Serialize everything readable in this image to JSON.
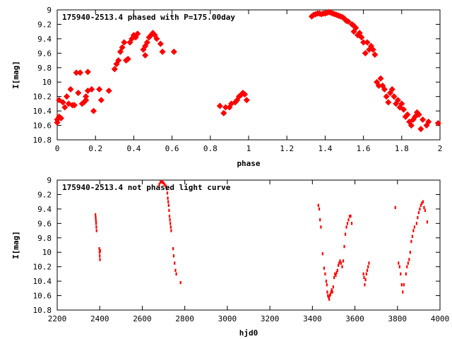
{
  "chart_data": [
    {
      "type": "scatter",
      "title": "175940-2513.4 phased with P=175.00day",
      "xlabel": "phase",
      "ylabel": "I[mag]",
      "xlim": [
        0,
        2
      ],
      "ylim": [
        9,
        10.8
      ],
      "y_inverted": true,
      "grid": false,
      "legend": "none",
      "marker_color": "#ff0000",
      "xticks": [
        "0",
        "0.2",
        "0.4",
        "0.6",
        "0.8",
        "1",
        "1.2",
        "1.4",
        "1.6",
        "1.8",
        "2"
      ],
      "xtick_values": [
        0,
        0.2,
        0.4,
        0.6,
        0.8,
        1.0,
        1.2,
        1.4,
        1.6,
        1.8,
        2.0
      ],
      "yticks": [
        "9",
        "9.2",
        "9.4",
        "9.6",
        "9.8",
        "10",
        "10.2",
        "10.4",
        "10.6",
        "10.8"
      ],
      "ytick_values": [
        9,
        9.2,
        9.4,
        9.6,
        9.8,
        10,
        10.2,
        10.4,
        10.6,
        10.8
      ],
      "points": [
        [
          0.0,
          10.52
        ],
        [
          0.0,
          10.56
        ],
        [
          0.01,
          10.48
        ],
        [
          0.01,
          10.25
        ],
        [
          0.02,
          10.5
        ],
        [
          0.03,
          10.28
        ],
        [
          0.04,
          10.35
        ],
        [
          0.05,
          10.2
        ],
        [
          0.06,
          10.3
        ],
        [
          0.07,
          10.1
        ],
        [
          0.08,
          10.32
        ],
        [
          0.09,
          10.32
        ],
        [
          0.1,
          9.87
        ],
        [
          0.11,
          10.15
        ],
        [
          0.12,
          9.87
        ],
        [
          0.13,
          10.3
        ],
        [
          0.14,
          10.28
        ],
        [
          0.15,
          10.25
        ],
        [
          0.15,
          10.2
        ],
        [
          0.16,
          10.12
        ],
        [
          0.16,
          9.86
        ],
        [
          0.18,
          10.1
        ],
        [
          0.19,
          10.4
        ],
        [
          0.22,
          10.1
        ],
        [
          0.23,
          10.25
        ],
        [
          0.27,
          10.12
        ],
        [
          0.3,
          9.82
        ],
        [
          0.31,
          9.75
        ],
        [
          0.32,
          9.7
        ],
        [
          0.33,
          9.58
        ],
        [
          0.34,
          9.52
        ],
        [
          0.35,
          9.45
        ],
        [
          0.36,
          9.7
        ],
        [
          0.37,
          9.68
        ],
        [
          0.38,
          9.45
        ],
        [
          0.39,
          9.4
        ],
        [
          0.4,
          9.35
        ],
        [
          0.41,
          9.38
        ],
        [
          0.42,
          9.33
        ],
        [
          0.45,
          9.55
        ],
        [
          0.46,
          9.5
        ],
        [
          0.46,
          9.63
        ],
        [
          0.47,
          9.45
        ],
        [
          0.48,
          9.38
        ],
        [
          0.49,
          9.35
        ],
        [
          0.5,
          9.32
        ],
        [
          0.51,
          9.35
        ],
        [
          0.52,
          9.4
        ],
        [
          0.54,
          9.47
        ],
        [
          0.55,
          9.58
        ],
        [
          0.61,
          9.58
        ],
        [
          0.85,
          10.33
        ],
        [
          0.87,
          10.43
        ],
        [
          0.88,
          10.35
        ],
        [
          0.9,
          10.35
        ],
        [
          0.91,
          10.3
        ],
        [
          0.93,
          10.28
        ],
        [
          0.94,
          10.25
        ],
        [
          0.95,
          10.2
        ],
        [
          0.96,
          10.18
        ],
        [
          0.97,
          10.15
        ],
        [
          0.98,
          10.17
        ],
        [
          0.99,
          10.25
        ],
        [
          1.33,
          9.09
        ],
        [
          1.34,
          9.07
        ],
        [
          1.35,
          9.06
        ],
        [
          1.36,
          9.05
        ],
        [
          1.37,
          9.05
        ],
        [
          1.38,
          9.06
        ],
        [
          1.39,
          9.05
        ],
        [
          1.4,
          9.05
        ],
        [
          1.41,
          9.04
        ],
        [
          1.42,
          9.03
        ],
        [
          1.43,
          9.04
        ],
        [
          1.44,
          9.05
        ],
        [
          1.45,
          9.06
        ],
        [
          1.46,
          9.07
        ],
        [
          1.47,
          9.08
        ],
        [
          1.48,
          9.09
        ],
        [
          1.49,
          9.1
        ],
        [
          1.5,
          9.12
        ],
        [
          1.51,
          9.15
        ],
        [
          1.52,
          9.16
        ],
        [
          1.54,
          9.2
        ],
        [
          1.55,
          9.22
        ],
        [
          1.55,
          9.3
        ],
        [
          1.56,
          9.25
        ],
        [
          1.57,
          9.35
        ],
        [
          1.58,
          9.32
        ],
        [
          1.59,
          9.38
        ],
        [
          1.6,
          9.45
        ],
        [
          1.61,
          9.6
        ],
        [
          1.62,
          9.45
        ],
        [
          1.63,
          9.55
        ],
        [
          1.64,
          9.5
        ],
        [
          1.65,
          9.55
        ],
        [
          1.66,
          9.62
        ],
        [
          1.67,
          10.0
        ],
        [
          1.68,
          10.05
        ],
        [
          1.69,
          9.95
        ],
        [
          1.7,
          10.05
        ],
        [
          1.71,
          10.1
        ],
        [
          1.72,
          10.2
        ],
        [
          1.73,
          10.28
        ],
        [
          1.74,
          10.15
        ],
        [
          1.75,
          10.1
        ],
        [
          1.76,
          10.2
        ],
        [
          1.77,
          10.3
        ],
        [
          1.78,
          10.25
        ],
        [
          1.79,
          10.35
        ],
        [
          1.8,
          10.3
        ],
        [
          1.81,
          10.38
        ],
        [
          1.82,
          10.48
        ],
        [
          1.83,
          10.45
        ],
        [
          1.84,
          10.55
        ],
        [
          1.85,
          10.6
        ],
        [
          1.86,
          10.52
        ],
        [
          1.87,
          10.48
        ],
        [
          1.88,
          10.42
        ],
        [
          1.89,
          10.45
        ],
        [
          1.9,
          10.65
        ],
        [
          1.91,
          10.52
        ],
        [
          1.93,
          10.6
        ],
        [
          1.94,
          10.55
        ],
        [
          1.99,
          10.57
        ]
      ]
    },
    {
      "type": "scatter",
      "title": "175940-2513.4 not phased light curve",
      "xlabel": "hjd0",
      "ylabel": "I[mag]",
      "xlim": [
        2200,
        4000
      ],
      "ylim": [
        9,
        10.8
      ],
      "y_inverted": true,
      "grid": false,
      "legend": "none",
      "marker_color": "#ff0000",
      "xticks": [
        "2200",
        "2400",
        "2600",
        "2800",
        "3000",
        "3200",
        "3400",
        "3600",
        "3800",
        "4000"
      ],
      "xtick_values": [
        2200,
        2400,
        2600,
        2800,
        3000,
        3200,
        3400,
        3600,
        3800,
        4000
      ],
      "yticks": [
        "9",
        "9.2",
        "9.4",
        "9.6",
        "9.8",
        "10",
        "10.2",
        "10.4",
        "10.6",
        "10.8"
      ],
      "ytick_values": [
        9,
        9.2,
        9.4,
        9.6,
        9.8,
        10,
        10.2,
        10.4,
        10.6,
        10.8
      ],
      "points": [
        [
          2380,
          9.48
        ],
        [
          2381,
          9.52
        ],
        [
          2382,
          9.56
        ],
        [
          2383,
          9.6
        ],
        [
          2384,
          9.65
        ],
        [
          2385,
          9.7
        ],
        [
          2398,
          9.95
        ],
        [
          2399,
          10.0
        ],
        [
          2400,
          10.05
        ],
        [
          2401,
          10.1
        ],
        [
          2402,
          9.98
        ],
        [
          2680,
          9.06
        ],
        [
          2685,
          9.03
        ],
        [
          2690,
          9.02
        ],
        [
          2695,
          9.03
        ],
        [
          2700,
          9.04
        ],
        [
          2705,
          9.06
        ],
        [
          2710,
          9.08
        ],
        [
          2715,
          9.12
        ],
        [
          2718,
          9.18
        ],
        [
          2720,
          9.25
        ],
        [
          2722,
          9.3
        ],
        [
          2724,
          9.35
        ],
        [
          2726,
          9.42
        ],
        [
          2728,
          9.5
        ],
        [
          2730,
          9.55
        ],
        [
          2732,
          9.6
        ],
        [
          2734,
          9.65
        ],
        [
          2736,
          9.7
        ],
        [
          2745,
          9.95
        ],
        [
          2748,
          10.05
        ],
        [
          2752,
          10.15
        ],
        [
          2756,
          10.25
        ],
        [
          2760,
          10.3
        ],
        [
          2780,
          10.42
        ],
        [
          3428,
          9.35
        ],
        [
          3432,
          9.4
        ],
        [
          3436,
          9.55
        ],
        [
          3440,
          9.65
        ],
        [
          3448,
          10.02
        ],
        [
          3455,
          10.22
        ],
        [
          3460,
          10.3
        ],
        [
          3465,
          10.4
        ],
        [
          3468,
          10.45
        ],
        [
          3470,
          10.55
        ],
        [
          3473,
          10.6
        ],
        [
          3476,
          10.62
        ],
        [
          3479,
          10.65
        ],
        [
          3482,
          10.6
        ],
        [
          3485,
          10.58
        ],
        [
          3488,
          10.55
        ],
        [
          3491,
          10.52
        ],
        [
          3494,
          10.55
        ],
        [
          3498,
          10.48
        ],
        [
          3502,
          10.35
        ],
        [
          3506,
          10.3
        ],
        [
          3510,
          10.32
        ],
        [
          3514,
          10.28
        ],
        [
          3518,
          10.25
        ],
        [
          3522,
          10.18
        ],
        [
          3526,
          10.15
        ],
        [
          3530,
          10.12
        ],
        [
          3535,
          10.15
        ],
        [
          3540,
          10.2
        ],
        [
          3545,
          10.12
        ],
        [
          3550,
          9.92
        ],
        [
          3555,
          9.75
        ],
        [
          3560,
          9.65
        ],
        [
          3565,
          9.6
        ],
        [
          3570,
          9.55
        ],
        [
          3575,
          9.5
        ],
        [
          3580,
          9.5
        ],
        [
          3585,
          9.6
        ],
        [
          3640,
          10.3
        ],
        [
          3643,
          10.35
        ],
        [
          3646,
          10.45
        ],
        [
          3650,
          10.38
        ],
        [
          3654,
          10.3
        ],
        [
          3658,
          10.25
        ],
        [
          3662,
          10.2
        ],
        [
          3666,
          10.15
        ],
        [
          3790,
          9.38
        ],
        [
          3805,
          10.15
        ],
        [
          3810,
          10.2
        ],
        [
          3815,
          10.3
        ],
        [
          3820,
          10.45
        ],
        [
          3825,
          10.55
        ],
        [
          3830,
          10.45
        ],
        [
          3840,
          10.3
        ],
        [
          3845,
          10.2
        ],
        [
          3850,
          10.15
        ],
        [
          3855,
          10.1
        ],
        [
          3860,
          10.0
        ],
        [
          3865,
          9.85
        ],
        [
          3870,
          9.78
        ],
        [
          3875,
          9.7
        ],
        [
          3880,
          9.65
        ],
        [
          3890,
          9.6
        ],
        [
          3895,
          9.52
        ],
        [
          3900,
          9.45
        ],
        [
          3905,
          9.4
        ],
        [
          3910,
          9.35
        ],
        [
          3915,
          9.32
        ],
        [
          3920,
          9.3
        ],
        [
          3925,
          9.38
        ],
        [
          3930,
          9.42
        ],
        [
          3940,
          9.58
        ]
      ]
    }
  ]
}
